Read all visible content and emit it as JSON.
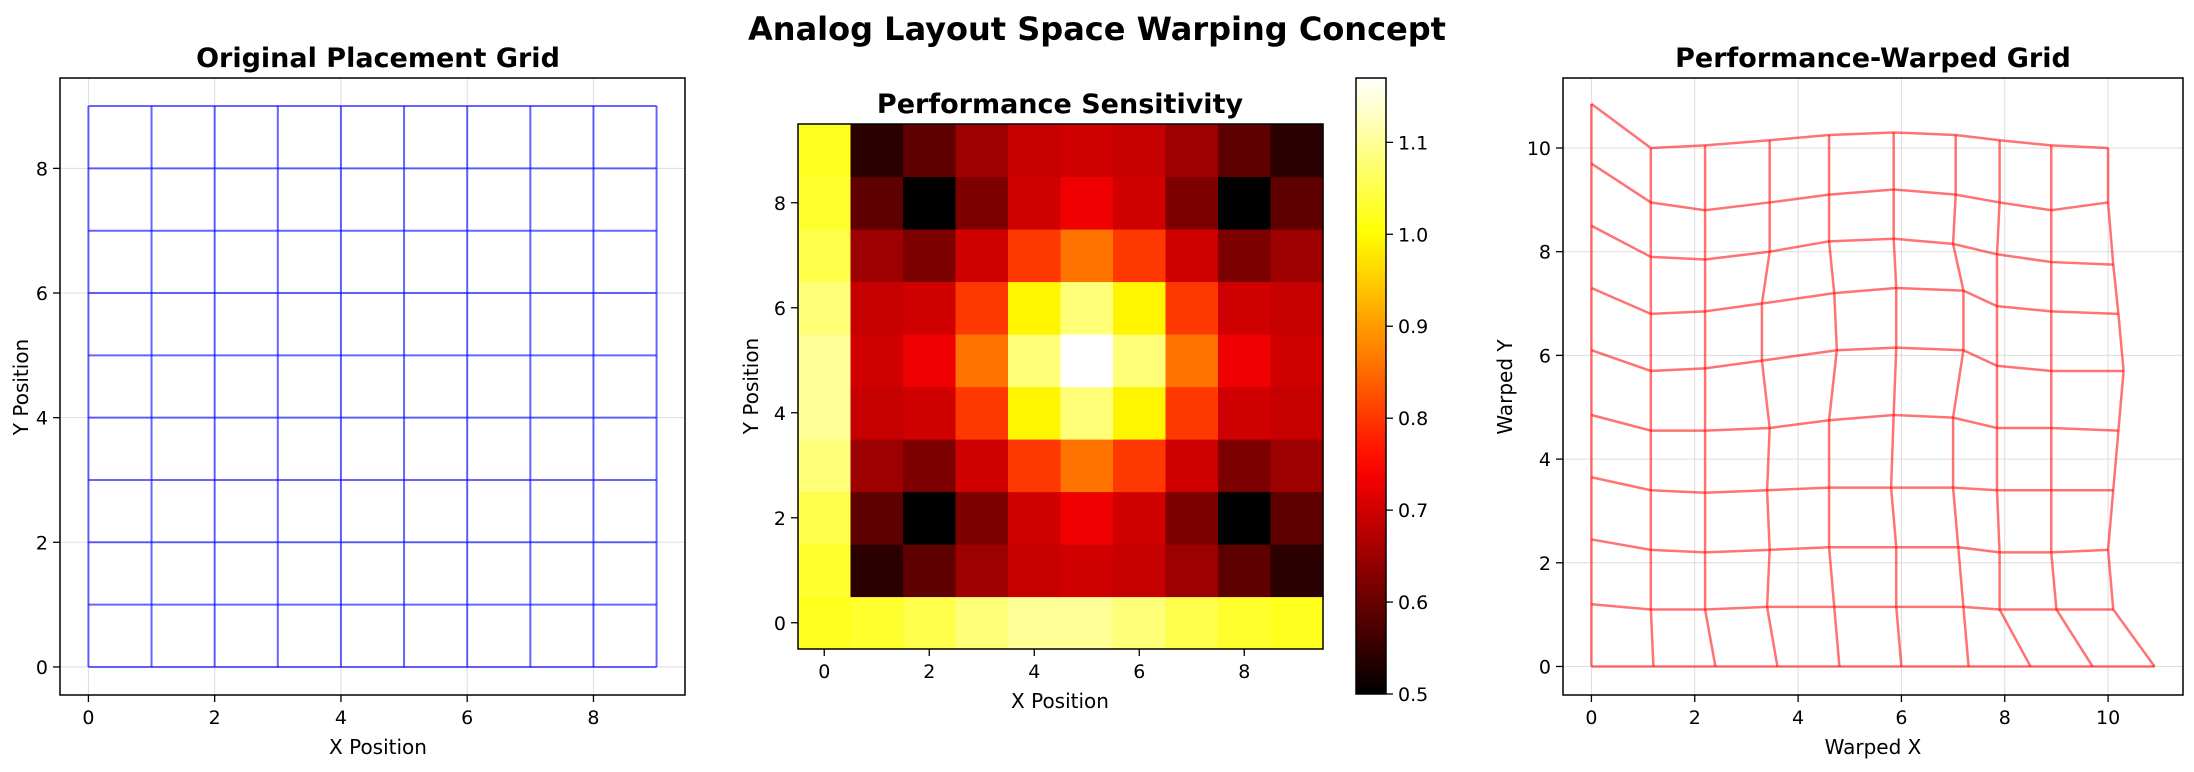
{
  "figure_title": "Analog Layout Space Warping Concept",
  "colors": {
    "original_grid": "#0000ff",
    "warped_grid": "#ff0000",
    "colormap": "hot"
  },
  "chart_data": [
    {
      "type": "line",
      "title": "Original Placement Grid",
      "xlabel": "X Position",
      "ylabel": "Y Position",
      "xlim": [
        -0.45,
        9.45
      ],
      "ylim": [
        -0.45,
        9.45
      ],
      "xticks": [
        0,
        2,
        4,
        6,
        8
      ],
      "yticks": [
        0,
        2,
        4,
        6,
        8
      ],
      "grid": true,
      "grid_x": [
        0,
        1,
        2,
        3,
        4,
        5,
        6,
        7,
        8,
        9
      ],
      "grid_y": [
        0,
        1,
        2,
        3,
        4,
        5,
        6,
        7,
        8,
        9
      ]
    },
    {
      "type": "heatmap",
      "title": "Performance Sensitivity",
      "xlabel": "X Position",
      "ylabel": "Y Position",
      "xticks": [
        0,
        2,
        4,
        6,
        8
      ],
      "yticks": [
        0,
        2,
        4,
        6,
        8
      ],
      "colorbar_range": [
        0.5,
        1.17
      ],
      "colorbar_ticks": [
        0.5,
        0.6,
        0.7,
        0.8,
        0.9,
        1.0,
        1.1
      ],
      "values_by_row_y0_to_y9": [
        [
          1.02,
          1.03,
          1.05,
          1.08,
          1.1,
          1.1,
          1.08,
          1.05,
          1.03,
          1.02
        ],
        [
          1.03,
          0.54,
          0.59,
          0.65,
          0.69,
          0.7,
          0.69,
          0.65,
          0.59,
          0.54
        ],
        [
          1.05,
          0.59,
          0.5,
          0.62,
          0.7,
          0.73,
          0.7,
          0.62,
          0.5,
          0.59
        ],
        [
          1.08,
          0.65,
          0.62,
          0.7,
          0.8,
          0.86,
          0.8,
          0.7,
          0.62,
          0.65
        ],
        [
          1.1,
          0.69,
          0.7,
          0.8,
          0.99,
          1.08,
          0.99,
          0.8,
          0.7,
          0.69
        ],
        [
          1.1,
          0.7,
          0.73,
          0.86,
          1.08,
          1.17,
          1.08,
          0.86,
          0.73,
          0.7
        ],
        [
          1.08,
          0.69,
          0.7,
          0.8,
          0.99,
          1.08,
          0.99,
          0.8,
          0.7,
          0.69
        ],
        [
          1.05,
          0.65,
          0.62,
          0.7,
          0.8,
          0.86,
          0.8,
          0.7,
          0.62,
          0.65
        ],
        [
          1.03,
          0.59,
          0.5,
          0.62,
          0.7,
          0.73,
          0.7,
          0.62,
          0.5,
          0.59
        ],
        [
          1.02,
          0.54,
          0.59,
          0.65,
          0.69,
          0.7,
          0.69,
          0.65,
          0.59,
          0.54
        ]
      ]
    },
    {
      "type": "line",
      "title": "Performance-Warped Grid",
      "xlabel": "Warped X",
      "ylabel": "Warped Y",
      "xlim": [
        -0.55,
        11.45
      ],
      "ylim": [
        -0.55,
        11.35
      ],
      "xticks": [
        0,
        2,
        4,
        6,
        8,
        10
      ],
      "yticks": [
        0,
        2,
        4,
        6,
        8,
        10
      ],
      "grid": true,
      "warped_points_by_row_y0_to_y9": [
        [
          [
            0,
            0
          ],
          [
            1.2,
            0
          ],
          [
            2.4,
            0
          ],
          [
            3.6,
            0
          ],
          [
            4.8,
            0
          ],
          [
            6.0,
            0
          ],
          [
            7.3,
            0
          ],
          [
            8.5,
            0
          ],
          [
            9.7,
            0
          ],
          [
            10.9,
            0
          ]
        ],
        [
          [
            0,
            1.2
          ],
          [
            1.15,
            1.1
          ],
          [
            2.2,
            1.1
          ],
          [
            3.4,
            1.15
          ],
          [
            4.7,
            1.15
          ],
          [
            5.9,
            1.15
          ],
          [
            7.2,
            1.15
          ],
          [
            7.9,
            1.1
          ],
          [
            9.0,
            1.1
          ],
          [
            10.1,
            1.1
          ]
        ],
        [
          [
            0,
            2.45
          ],
          [
            1.15,
            2.25
          ],
          [
            2.2,
            2.2
          ],
          [
            3.45,
            2.25
          ],
          [
            4.6,
            2.3
          ],
          [
            5.9,
            2.3
          ],
          [
            7.1,
            2.3
          ],
          [
            7.9,
            2.2
          ],
          [
            8.9,
            2.2
          ],
          [
            10.0,
            2.25
          ]
        ],
        [
          [
            0,
            3.65
          ],
          [
            1.15,
            3.4
          ],
          [
            2.2,
            3.35
          ],
          [
            3.4,
            3.4
          ],
          [
            4.6,
            3.45
          ],
          [
            5.8,
            3.45
          ],
          [
            7.0,
            3.45
          ],
          [
            7.85,
            3.4
          ],
          [
            8.9,
            3.4
          ],
          [
            10.1,
            3.4
          ]
        ],
        [
          [
            0,
            4.85
          ],
          [
            1.15,
            4.55
          ],
          [
            2.2,
            4.55
          ],
          [
            3.45,
            4.6
          ],
          [
            4.6,
            4.75
          ],
          [
            5.85,
            4.85
          ],
          [
            7.0,
            4.8
          ],
          [
            7.85,
            4.6
          ],
          [
            8.9,
            4.6
          ],
          [
            10.2,
            4.55
          ]
        ],
        [
          [
            0,
            6.1
          ],
          [
            1.15,
            5.7
          ],
          [
            2.2,
            5.75
          ],
          [
            3.3,
            5.9
          ],
          [
            4.75,
            6.1
          ],
          [
            5.9,
            6.15
          ],
          [
            7.2,
            6.1
          ],
          [
            7.85,
            5.8
          ],
          [
            8.9,
            5.7
          ],
          [
            10.3,
            5.7
          ]
        ],
        [
          [
            0,
            7.3
          ],
          [
            1.15,
            6.8
          ],
          [
            2.2,
            6.85
          ],
          [
            3.3,
            7.0
          ],
          [
            4.7,
            7.2
          ],
          [
            5.9,
            7.3
          ],
          [
            7.2,
            7.25
          ],
          [
            7.85,
            6.95
          ],
          [
            8.9,
            6.85
          ],
          [
            10.2,
            6.8
          ]
        ],
        [
          [
            0,
            8.5
          ],
          [
            1.15,
            7.9
          ],
          [
            2.2,
            7.85
          ],
          [
            3.45,
            8.0
          ],
          [
            4.6,
            8.2
          ],
          [
            5.85,
            8.25
          ],
          [
            7.0,
            8.15
          ],
          [
            7.85,
            7.95
          ],
          [
            8.9,
            7.8
          ],
          [
            10.1,
            7.75
          ]
        ],
        [
          [
            0,
            9.7
          ],
          [
            1.15,
            8.95
          ],
          [
            2.2,
            8.8
          ],
          [
            3.45,
            8.95
          ],
          [
            4.6,
            9.1
          ],
          [
            5.85,
            9.2
          ],
          [
            7.05,
            9.1
          ],
          [
            7.9,
            8.95
          ],
          [
            8.9,
            8.8
          ],
          [
            10.0,
            8.95
          ]
        ],
        [
          [
            0,
            10.85
          ],
          [
            1.15,
            10.0
          ],
          [
            2.2,
            10.05
          ],
          [
            3.45,
            10.15
          ],
          [
            4.6,
            10.25
          ],
          [
            5.85,
            10.3
          ],
          [
            7.05,
            10.25
          ],
          [
            7.9,
            10.15
          ],
          [
            8.9,
            10.05
          ],
          [
            10.0,
            10.0
          ]
        ]
      ]
    }
  ]
}
